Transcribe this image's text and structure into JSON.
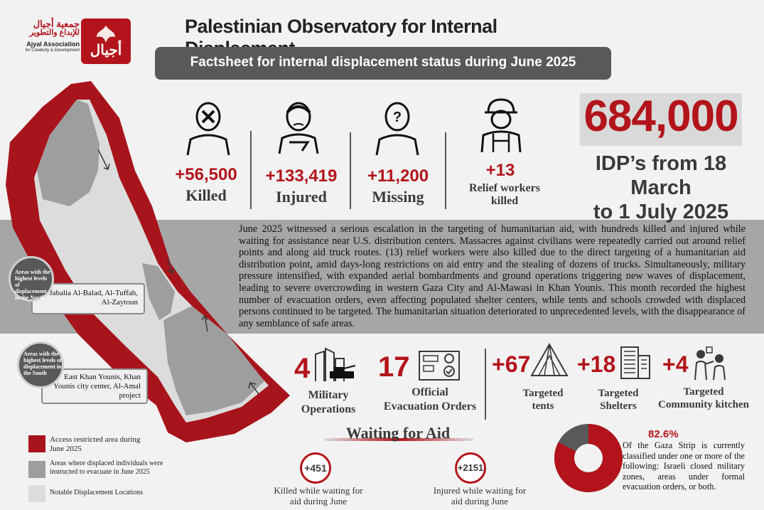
{
  "header": {
    "title": "Palestinian Observatory for Internal Displacment",
    "subtitle": "Factsheet for internal displacement status during June 2025",
    "logo_ar_line1": "جمعية أجيال",
    "logo_ar_line2": "للإبداع والتطوير",
    "logo_en_line1": "Ajyal Association",
    "logo_en_line2": "for Creativity & Development",
    "logo_mark": "أجيال"
  },
  "stats": [
    {
      "value": "+56,500",
      "label": "Killed",
      "icon": "masked-person-icon"
    },
    {
      "value": "+133,419",
      "label": "Injured",
      "icon": "injured-person-icon"
    },
    {
      "value": "+11,200",
      "label": "Missing",
      "icon": "missing-person-icon"
    },
    {
      "value": "+13",
      "label": "Relief workers killed",
      "icon": "relief-worker-icon"
    }
  ],
  "idp": {
    "value": "684,000",
    "label_line1": "IDP’s from 18 March",
    "label_line2": "to 1 July 2025"
  },
  "narrative": "June 2025 witnessed a serious escalation in the targeting of humanitarian aid, with hundreds killed and injured while waiting for assistance near U.S. distribution centers. Massacres against civilians were repeatedly carried out around relief points and along aid truck routes. (13) relief workers were also killed due to the direct targeting of a humanitarian aid distribution point, amid days-long restrictions on aid entry and the stealing of dozens of trucks. Simultaneously, military pressure intensified, with expanded aerial bombardments and ground operations triggering new waves of displacement, leading to severe overcrowding in western Gaza City and Al-Mawasi in Khan Younis. This month recorded the highest number of evacuation orders, even affecting populated shelter centers, while tents and schools crowded with displaced persons continued to be targeted. The humanitarian situation deteriorated to unprecedented levels, with the disappearance of any semblance of safe areas.",
  "areas": {
    "north_title": "Areas with the highest levels of displacement in the North",
    "north_places": "Jabalia Al-Balad, Al-Tuffah, Al-Zaytoun",
    "south_title": "Areas with the highest levels of displacement in the South",
    "south_places": "East Khan Younis, Khan Younis city center, Al-Amal project"
  },
  "lower_stats": [
    {
      "value": "4",
      "label_line1": "Military",
      "label_line2": "Operations"
    },
    {
      "value": "17",
      "label_line1": "Official",
      "label_line2": "Evacuation Orders"
    },
    {
      "value": "+67",
      "label_line1": "Targeted",
      "label_line2": "tents"
    },
    {
      "value": "+18",
      "label_line1": "Targeted",
      "label_line2": "Shelters"
    },
    {
      "value": "+4",
      "label_line1": "Targeted",
      "label_line2": "Community kitchen"
    }
  ],
  "legend": [
    {
      "color": "#a8141b",
      "text": "Access restricted area during June 2025"
    },
    {
      "color": "#9e9e9e",
      "text": "Areas where displaced individuals were instructed to evacuate in June 2025"
    },
    {
      "color": "#dcdcdc",
      "text": "Notable Displacement Locations"
    }
  ],
  "waiting": {
    "title": "Waiting for Aid",
    "killed_value": "+451",
    "killed_text": "Killed while waiting for aid during June",
    "injured_value": "+2151",
    "injured_text": "Injured while waiting for aid during June"
  },
  "coverage": {
    "percent_label": "82.6%",
    "percent_value": 82.6,
    "text": "Of the Gaza Strip is currently classified under one or more of the following: Israeli closed military zones, areas under formal evacuation orders, or both.",
    "color": "#b3141b",
    "rest_color": "#595959"
  },
  "colors": {
    "accent": "#b3141b",
    "dark": "#3a3a3a"
  }
}
